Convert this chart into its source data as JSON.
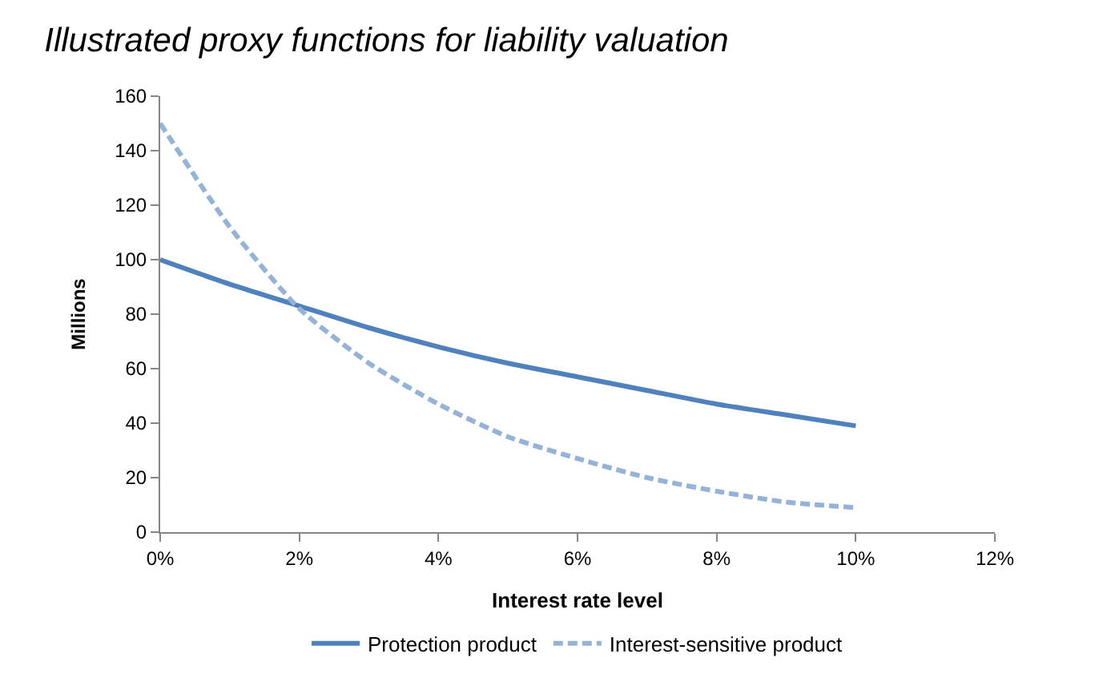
{
  "chart_data": {
    "type": "line",
    "title": "Illustrated proxy functions for liability valuation",
    "xlabel": "Interest rate level",
    "ylabel": "Millions",
    "x": [
      0,
      1,
      2,
      3,
      4,
      5,
      6,
      7,
      8,
      9,
      10
    ],
    "series": [
      {
        "name": "Protection product",
        "color": "#4f81bd",
        "line_style": "solid",
        "values": [
          100,
          91,
          83,
          75,
          68,
          62,
          57,
          52,
          47,
          43,
          39
        ]
      },
      {
        "name": "Interest-sensitive product",
        "color": "#95b3d7",
        "line_style": "dashed",
        "values": [
          150,
          112,
          82,
          62,
          47,
          35,
          27,
          20,
          15,
          11,
          9
        ]
      }
    ],
    "xlim": [
      0,
      12
    ],
    "xticks": [
      {
        "value": 0,
        "label": "0%"
      },
      {
        "value": 2,
        "label": "2%"
      },
      {
        "value": 4,
        "label": "4%"
      },
      {
        "value": 6,
        "label": "6%"
      },
      {
        "value": 8,
        "label": "8%"
      },
      {
        "value": 10,
        "label": "10%"
      },
      {
        "value": 12,
        "label": "12%"
      }
    ],
    "ylim": [
      0,
      160
    ],
    "yticks": [
      0,
      20,
      40,
      60,
      80,
      100,
      120,
      140,
      160
    ],
    "legend": "bottom",
    "grid": false,
    "marker": "none"
  }
}
